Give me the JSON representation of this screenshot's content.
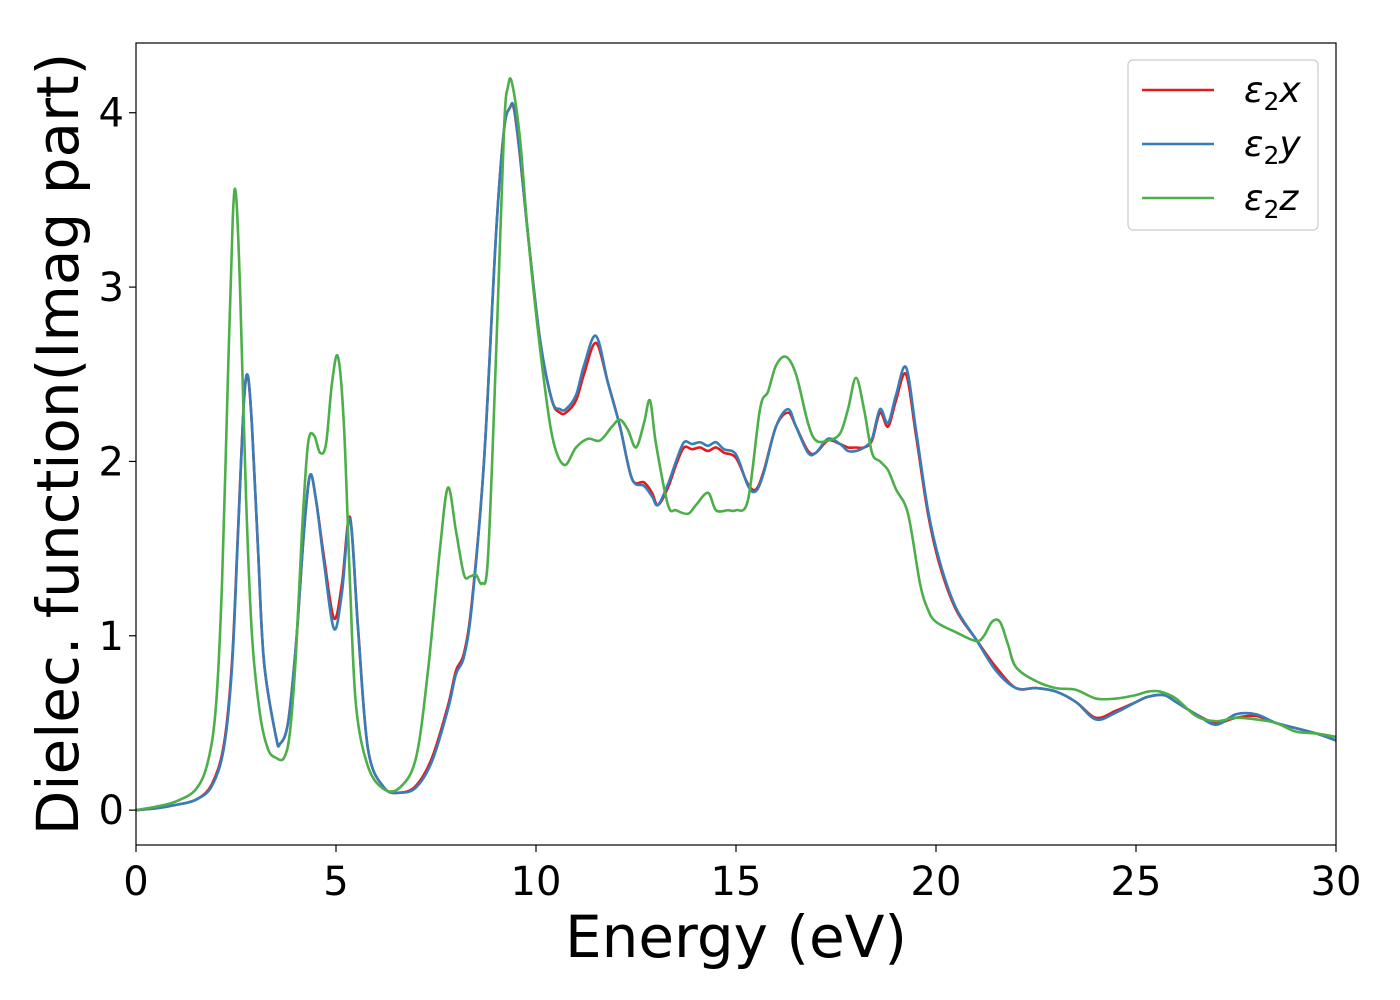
{
  "chart_data": {
    "type": "line",
    "xlabel": "Energy (eV)",
    "ylabel": "Dielec. function(Imag part)",
    "xlim": [
      0,
      30
    ],
    "ylim": [
      -0.2,
      4.4
    ],
    "xticks": [
      0,
      5,
      10,
      15,
      20,
      25,
      30
    ],
    "yticks": [
      0,
      1,
      2,
      3,
      4
    ],
    "legend_position": "top-right",
    "grid": false,
    "series": [
      {
        "name": "ε₂x",
        "legend_base": "ε",
        "legend_sub": "2",
        "legend_var": "x",
        "color": "#e41a1c",
        "x": [
          0,
          0.5,
          1.0,
          1.5,
          1.9,
          2.2,
          2.4,
          2.55,
          2.7,
          2.8,
          2.9,
          3.05,
          3.2,
          3.5,
          3.6,
          3.8,
          4.0,
          4.2,
          4.35,
          4.5,
          4.7,
          4.95,
          5.15,
          5.35,
          5.55,
          5.8,
          6.2,
          6.6,
          7.0,
          7.4,
          7.8,
          8.0,
          8.2,
          8.4,
          8.7,
          9.0,
          9.2,
          9.35,
          9.45,
          9.6,
          9.8,
          10.1,
          10.4,
          10.6,
          10.75,
          11.0,
          11.2,
          11.5,
          11.8,
          12.1,
          12.4,
          12.7,
          12.9,
          13.05,
          13.3,
          13.5,
          13.7,
          13.9,
          14.1,
          14.3,
          14.5,
          14.7,
          15.0,
          15.3,
          15.5,
          15.7,
          16.0,
          16.3,
          16.5,
          16.8,
          17.0,
          17.3,
          17.6,
          17.8,
          18.0,
          18.2,
          18.4,
          18.6,
          18.8,
          19.0,
          19.25,
          19.5,
          19.8,
          20.1,
          20.5,
          21.0,
          21.5,
          22.0,
          22.5,
          23.0,
          23.5,
          24.0,
          24.5,
          25.0,
          25.3,
          25.7,
          26.0,
          26.5,
          27.0,
          27.5,
          28.0,
          28.5,
          29.0,
          29.5,
          30.0
        ],
        "y": [
          0.0,
          0.01,
          0.03,
          0.06,
          0.15,
          0.38,
          0.85,
          1.6,
          2.35,
          2.48,
          2.2,
          1.5,
          0.85,
          0.42,
          0.38,
          0.5,
          0.95,
          1.6,
          1.92,
          1.78,
          1.45,
          1.1,
          1.3,
          1.68,
          1.05,
          0.35,
          0.13,
          0.1,
          0.14,
          0.3,
          0.6,
          0.8,
          0.9,
          1.2,
          2.0,
          3.3,
          3.9,
          4.03,
          4.02,
          3.75,
          3.3,
          2.7,
          2.35,
          2.28,
          2.28,
          2.35,
          2.5,
          2.68,
          2.45,
          2.2,
          1.9,
          1.88,
          1.82,
          1.75,
          1.85,
          1.98,
          2.08,
          2.07,
          2.08,
          2.06,
          2.08,
          2.05,
          2.02,
          1.87,
          1.84,
          1.95,
          2.2,
          2.28,
          2.2,
          2.06,
          2.05,
          2.12,
          2.1,
          2.08,
          2.08,
          2.08,
          2.12,
          2.28,
          2.2,
          2.35,
          2.5,
          2.15,
          1.7,
          1.4,
          1.15,
          0.98,
          0.82,
          0.7,
          0.7,
          0.68,
          0.62,
          0.53,
          0.57,
          0.62,
          0.65,
          0.66,
          0.62,
          0.55,
          0.5,
          0.53,
          0.54,
          0.5,
          0.47,
          0.44,
          0.4
        ]
      },
      {
        "name": "ε₂y",
        "legend_base": "ε",
        "legend_sub": "2",
        "legend_var": "y",
        "color": "#377eb8",
        "x": [
          0,
          0.5,
          1.0,
          1.5,
          1.9,
          2.2,
          2.4,
          2.55,
          2.7,
          2.8,
          2.9,
          3.05,
          3.2,
          3.5,
          3.6,
          3.8,
          4.0,
          4.2,
          4.35,
          4.5,
          4.7,
          4.95,
          5.15,
          5.35,
          5.55,
          5.8,
          6.2,
          6.6,
          7.0,
          7.4,
          7.8,
          8.0,
          8.2,
          8.4,
          8.7,
          9.0,
          9.2,
          9.35,
          9.45,
          9.6,
          9.8,
          10.1,
          10.4,
          10.6,
          10.75,
          11.0,
          11.2,
          11.5,
          11.8,
          12.1,
          12.4,
          12.7,
          12.9,
          13.05,
          13.3,
          13.5,
          13.7,
          13.9,
          14.1,
          14.3,
          14.5,
          14.7,
          15.0,
          15.3,
          15.5,
          15.7,
          16.0,
          16.3,
          16.5,
          16.8,
          17.0,
          17.3,
          17.6,
          17.8,
          18.0,
          18.2,
          18.4,
          18.6,
          18.8,
          19.0,
          19.25,
          19.5,
          19.8,
          20.1,
          20.5,
          21.0,
          21.5,
          22.0,
          22.5,
          23.0,
          23.5,
          24.0,
          24.5,
          25.0,
          25.3,
          25.7,
          26.0,
          26.5,
          27.0,
          27.5,
          28.0,
          28.5,
          29.0,
          29.5,
          30.0
        ],
        "y": [
          0.0,
          0.01,
          0.03,
          0.06,
          0.14,
          0.36,
          0.82,
          1.58,
          2.35,
          2.49,
          2.2,
          1.5,
          0.85,
          0.42,
          0.38,
          0.5,
          0.95,
          1.6,
          1.92,
          1.78,
          1.42,
          1.04,
          1.25,
          1.67,
          1.04,
          0.35,
          0.13,
          0.1,
          0.13,
          0.28,
          0.58,
          0.78,
          0.88,
          1.18,
          2.0,
          3.3,
          3.9,
          4.03,
          4.03,
          3.76,
          3.3,
          2.7,
          2.35,
          2.3,
          2.3,
          2.38,
          2.55,
          2.72,
          2.45,
          2.2,
          1.9,
          1.86,
          1.8,
          1.75,
          1.87,
          2.0,
          2.11,
          2.1,
          2.11,
          2.09,
          2.11,
          2.07,
          2.04,
          1.86,
          1.83,
          1.94,
          2.2,
          2.3,
          2.2,
          2.05,
          2.05,
          2.13,
          2.1,
          2.06,
          2.06,
          2.08,
          2.13,
          2.3,
          2.22,
          2.38,
          2.54,
          2.18,
          1.72,
          1.42,
          1.16,
          0.98,
          0.8,
          0.7,
          0.7,
          0.68,
          0.62,
          0.52,
          0.56,
          0.62,
          0.65,
          0.66,
          0.62,
          0.55,
          0.49,
          0.55,
          0.55,
          0.5,
          0.47,
          0.44,
          0.4
        ]
      },
      {
        "name": "ε₂z",
        "legend_base": "ε",
        "legend_sub": "2",
        "legend_var": "z",
        "color": "#4daf4a",
        "x": [
          0,
          0.5,
          1.0,
          1.5,
          1.8,
          2.0,
          2.15,
          2.3,
          2.42,
          2.5,
          2.6,
          2.75,
          2.9,
          3.1,
          3.3,
          3.5,
          3.7,
          3.85,
          4.0,
          4.15,
          4.3,
          4.45,
          4.6,
          4.75,
          4.9,
          5.05,
          5.2,
          5.35,
          5.5,
          5.8,
          6.2,
          6.6,
          7.0,
          7.3,
          7.6,
          7.8,
          8.0,
          8.2,
          8.35,
          8.5,
          8.65,
          8.8,
          9.0,
          9.2,
          9.3,
          9.4,
          9.6,
          9.8,
          10.1,
          10.4,
          10.7,
          11.0,
          11.3,
          11.6,
          11.9,
          12.1,
          12.3,
          12.5,
          12.7,
          12.85,
          13.0,
          13.3,
          13.5,
          13.8,
          14.0,
          14.3,
          14.5,
          14.8,
          15.0,
          15.3,
          15.6,
          15.8,
          16.0,
          16.25,
          16.5,
          16.8,
          17.0,
          17.3,
          17.6,
          17.8,
          18.0,
          18.2,
          18.4,
          18.6,
          18.8,
          19.0,
          19.3,
          19.6,
          19.8,
          20.0,
          20.5,
          21.0,
          21.2,
          21.4,
          21.6,
          21.8,
          22.0,
          22.5,
          23.0,
          23.5,
          24.0,
          24.5,
          25.0,
          25.3,
          25.6,
          26.0,
          26.5,
          27.0,
          27.5,
          28.0,
          28.5,
          29.0,
          29.5,
          30.0
        ],
        "y": [
          0.0,
          0.02,
          0.05,
          0.12,
          0.28,
          0.6,
          1.3,
          2.5,
          3.4,
          3.53,
          3.0,
          1.8,
          1.0,
          0.55,
          0.35,
          0.3,
          0.3,
          0.45,
          0.9,
          1.6,
          2.1,
          2.15,
          2.05,
          2.1,
          2.45,
          2.6,
          2.2,
          1.3,
          0.6,
          0.25,
          0.12,
          0.13,
          0.3,
          0.8,
          1.5,
          1.85,
          1.6,
          1.35,
          1.34,
          1.35,
          1.3,
          1.45,
          2.6,
          3.9,
          4.15,
          4.17,
          3.85,
          3.3,
          2.65,
          2.15,
          1.98,
          2.08,
          2.13,
          2.12,
          2.2,
          2.24,
          2.18,
          2.08,
          2.22,
          2.35,
          2.1,
          1.75,
          1.72,
          1.7,
          1.75,
          1.82,
          1.72,
          1.72,
          1.72,
          1.78,
          2.3,
          2.4,
          2.55,
          2.6,
          2.5,
          2.22,
          2.12,
          2.12,
          2.16,
          2.3,
          2.48,
          2.3,
          2.05,
          2.0,
          1.95,
          1.84,
          1.7,
          1.3,
          1.15,
          1.08,
          1.02,
          0.97,
          1.0,
          1.08,
          1.08,
          0.95,
          0.82,
          0.74,
          0.7,
          0.69,
          0.64,
          0.64,
          0.66,
          0.68,
          0.68,
          0.64,
          0.54,
          0.51,
          0.53,
          0.52,
          0.5,
          0.45,
          0.44,
          0.42
        ]
      }
    ]
  }
}
